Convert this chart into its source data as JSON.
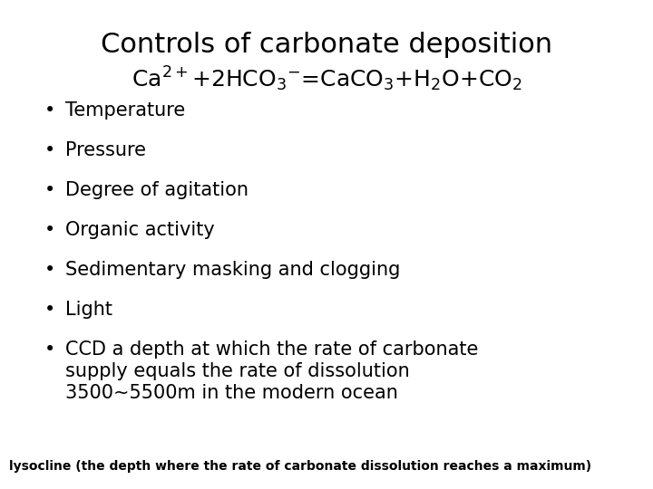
{
  "title": "Controls of carbonate deposition",
  "equation": "Ca$^{2+}$+2HCO$_3$$^{-}$=CaCO$_3$+H$_2$O+CO$_2$",
  "bullet_items": [
    "Temperature",
    "Pressure",
    "Degree of agitation",
    "Organic activity",
    "Sedimentary masking and clogging",
    "Light",
    "CCD a depth at which the rate of carbonate\nsupply equals the rate of dissolution\n3500~5500m in the modern ocean"
  ],
  "footnote": "lysocline (the depth where the rate of carbonate dissolution reaches a maximum)",
  "bg_color": "#ffffff",
  "text_color": "#000000",
  "title_fontsize": 22,
  "equation_fontsize": 18,
  "bullet_fontsize": 15,
  "footnote_fontsize": 10
}
